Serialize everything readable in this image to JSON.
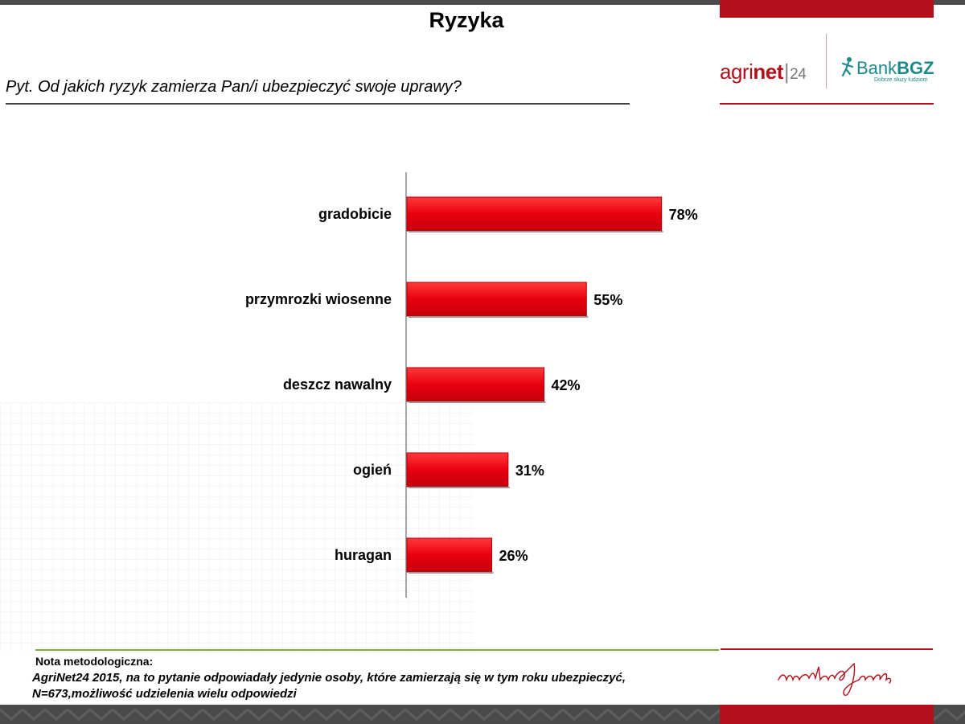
{
  "header": {
    "title": "Ryzyka",
    "question": "Pyt. Od jakich ryzyk zamierza Pan/i ubezpieczyć swoje uprawy?"
  },
  "logos": {
    "agrinet_light": "agri",
    "agrinet_bold": "net",
    "agrinet_num": "24",
    "bank_light": "Bank",
    "bank_bold": "BGZ",
    "bank_tagline": "Dobrze służy ludziom",
    "signature_text": "martin&jacob"
  },
  "chart_data": {
    "type": "bar",
    "orientation": "horizontal",
    "categories": [
      "gradobicie",
      "przymrozki wiosenne",
      "deszcz nawalny",
      "ogień",
      "huragan"
    ],
    "values": [
      78,
      55,
      42,
      31,
      26
    ],
    "value_labels": [
      "78%",
      "55%",
      "42%",
      "31%",
      "26%"
    ],
    "xlim": [
      0,
      100
    ],
    "grid": false,
    "bar_color": "#e8000f"
  },
  "footer": {
    "nota_title": "Nota metodologiczna:",
    "nota_line1": "AgriNet24 2015, na to pytanie odpowiadały jedynie osoby, które zamierzają się w tym roku ubezpieczyć,",
    "nota_line2": "N=673,możliwość udzielenia wielu odpowiedzi"
  },
  "colors": {
    "brand_red": "#b3101b",
    "bank_teal": "#1c8a8c",
    "footer_green": "#7cab3c"
  }
}
